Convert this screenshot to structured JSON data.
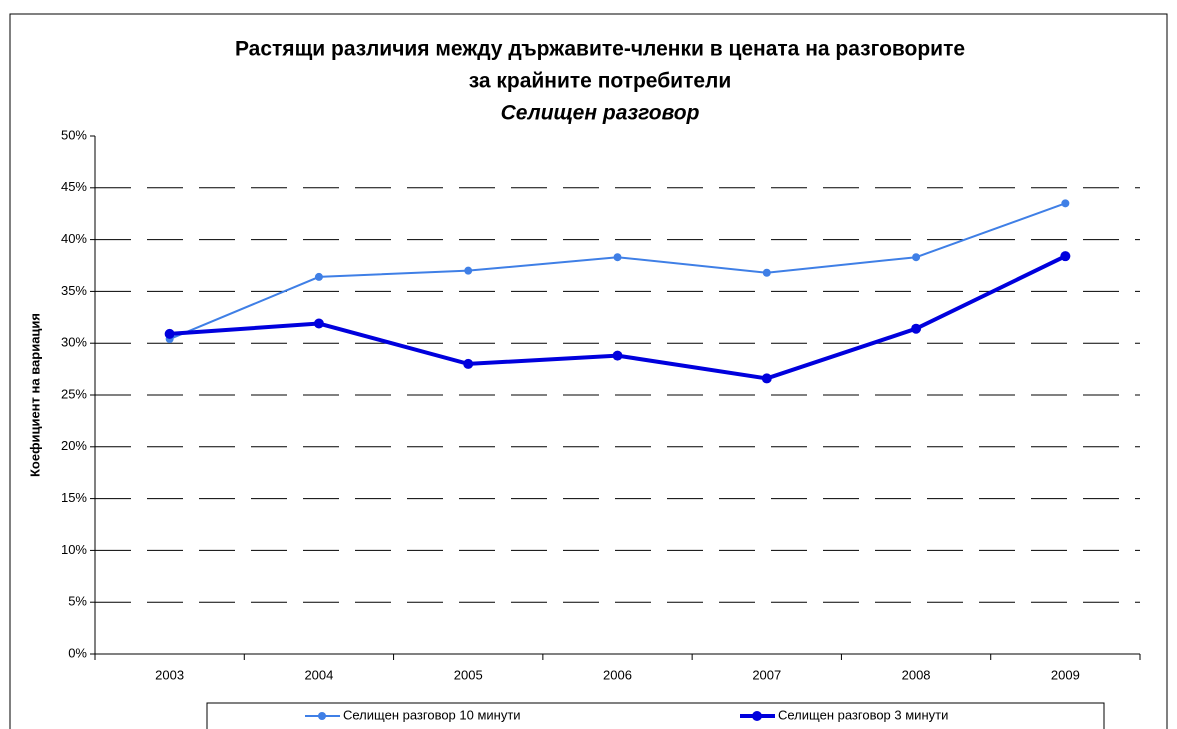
{
  "chart_data": {
    "type": "line",
    "title": [
      "Растящи различия между държавите-членки в цената на разговорите",
      "за крайните потребители"
    ],
    "subtitle": "Селищен разговор",
    "y_label": "Коефициент на вариация",
    "categories": [
      "2003",
      "2004",
      "2005",
      "2006",
      "2007",
      "2008",
      "2009"
    ],
    "series": [
      {
        "name": "Селищен разговор 10 минути",
        "color": "#3f7fe6",
        "width": 2,
        "values": [
          30.4,
          36.4,
          37.0,
          38.3,
          36.8,
          38.3,
          43.5
        ]
      },
      {
        "name": "Селищен разговор 3 минути",
        "color": "#0000dd",
        "width": 4,
        "values": [
          30.9,
          31.9,
          28.0,
          28.8,
          26.6,
          31.4,
          38.4
        ]
      }
    ],
    "ylim": [
      0,
      50
    ],
    "yticks": [
      {
        "value": 0,
        "label": "0%"
      },
      {
        "value": 5,
        "label": "5%"
      },
      {
        "value": 10,
        "label": "10%"
      },
      {
        "value": 15,
        "label": "15%"
      },
      {
        "value": 20,
        "label": "20%"
      },
      {
        "value": 25,
        "label": "25%"
      },
      {
        "value": 30,
        "label": "30%"
      },
      {
        "value": 35,
        "label": "35%"
      },
      {
        "value": 40,
        "label": "40%"
      },
      {
        "value": 45,
        "label": "45%"
      },
      {
        "value": 50,
        "label": "50%"
      }
    ],
    "grid": true,
    "legend": "bottom"
  }
}
